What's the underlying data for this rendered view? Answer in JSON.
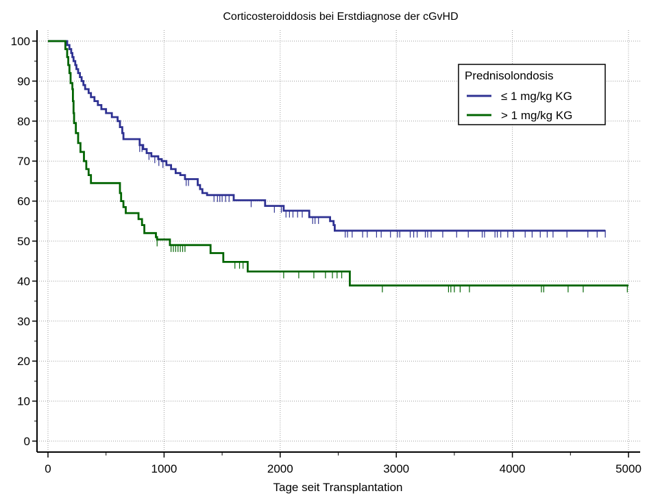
{
  "chart_data": {
    "type": "line",
    "step": true,
    "title": "Corticosteroiddosis bei Erstdiagnose der cGvHD",
    "xlabel": "Tage seit Transplantation",
    "ylabel": "",
    "xlim": [
      0,
      5000
    ],
    "ylim": [
      0,
      100
    ],
    "xticks": [
      0,
      1000,
      2000,
      3000,
      4000,
      5000
    ],
    "yticks": [
      0,
      10,
      20,
      30,
      40,
      50,
      60,
      70,
      80,
      90,
      100
    ],
    "grid": true,
    "legend": {
      "title": "Prednisolondosis",
      "placement": "top-right"
    },
    "series": [
      {
        "name": "≤ 1 mg/kg KG",
        "color": "#2E3192",
        "points": [
          [
            0,
            100
          ],
          [
            155,
            100
          ],
          [
            165,
            99
          ],
          [
            185,
            98
          ],
          [
            200,
            97
          ],
          [
            210,
            96
          ],
          [
            220,
            95
          ],
          [
            235,
            94
          ],
          [
            245,
            93
          ],
          [
            260,
            92
          ],
          [
            275,
            91
          ],
          [
            290,
            90
          ],
          [
            305,
            89
          ],
          [
            320,
            88
          ],
          [
            350,
            87
          ],
          [
            370,
            86
          ],
          [
            400,
            85
          ],
          [
            430,
            84
          ],
          [
            460,
            83
          ],
          [
            500,
            82
          ],
          [
            550,
            81
          ],
          [
            600,
            80
          ],
          [
            620,
            78.5
          ],
          [
            640,
            77
          ],
          [
            650,
            75.5
          ],
          [
            770,
            75.5
          ],
          [
            790,
            74
          ],
          [
            820,
            73
          ],
          [
            850,
            72
          ],
          [
            890,
            71.2
          ],
          [
            950,
            70.5
          ],
          [
            980,
            70
          ],
          [
            1020,
            69
          ],
          [
            1060,
            68
          ],
          [
            1100,
            67
          ],
          [
            1140,
            66.5
          ],
          [
            1180,
            65.5
          ],
          [
            1280,
            65.5
          ],
          [
            1290,
            64
          ],
          [
            1310,
            63
          ],
          [
            1330,
            62
          ],
          [
            1370,
            61.5
          ],
          [
            1590,
            61.5
          ],
          [
            1600,
            60.2
          ],
          [
            1860,
            60.2
          ],
          [
            1870,
            58.8
          ],
          [
            2020,
            58.8
          ],
          [
            2030,
            57.6
          ],
          [
            2240,
            57.6
          ],
          [
            2250,
            56
          ],
          [
            2420,
            56
          ],
          [
            2430,
            55
          ],
          [
            2460,
            54
          ],
          [
            2470,
            52.6
          ],
          [
            4800,
            52.6
          ]
        ],
        "censor_x": [
          790,
          810,
          870,
          920,
          955,
          990,
          1190,
          1210,
          1430,
          1460,
          1480,
          1500,
          1530,
          1560,
          1750,
          1950,
          2010,
          2050,
          2080,
          2110,
          2150,
          2190,
          2280,
          2300,
          2330,
          2560,
          2580,
          2620,
          2710,
          2750,
          2830,
          2870,
          2950,
          3010,
          3030,
          3120,
          3150,
          3180,
          3250,
          3270,
          3300,
          3400,
          3520,
          3620,
          3740,
          3760,
          3850,
          3870,
          3900,
          3960,
          4010,
          4110,
          4170,
          4240,
          4300,
          4350,
          4470,
          4650,
          4730,
          4800
        ]
      },
      {
        "name": "> 1 mg/kg KG",
        "color": "#006400",
        "points": [
          [
            0,
            100
          ],
          [
            140,
            100
          ],
          [
            150,
            98
          ],
          [
            165,
            96
          ],
          [
            175,
            94
          ],
          [
            185,
            92
          ],
          [
            195,
            89.5
          ],
          [
            210,
            88
          ],
          [
            215,
            85
          ],
          [
            220,
            82
          ],
          [
            225,
            79.5
          ],
          [
            240,
            77
          ],
          [
            260,
            74.5
          ],
          [
            280,
            72.3
          ],
          [
            310,
            70
          ],
          [
            330,
            68
          ],
          [
            350,
            66.5
          ],
          [
            370,
            64.5
          ],
          [
            610,
            64.5
          ],
          [
            620,
            62
          ],
          [
            630,
            60
          ],
          [
            650,
            58.5
          ],
          [
            670,
            57
          ],
          [
            760,
            57
          ],
          [
            780,
            55.5
          ],
          [
            810,
            54
          ],
          [
            830,
            52
          ],
          [
            920,
            52
          ],
          [
            930,
            51
          ],
          [
            940,
            50.4
          ],
          [
            1040,
            50.4
          ],
          [
            1050,
            49
          ],
          [
            1390,
            49
          ],
          [
            1400,
            47
          ],
          [
            1500,
            47
          ],
          [
            1510,
            44.8
          ],
          [
            1710,
            44.8
          ],
          [
            1720,
            42.4
          ],
          [
            2590,
            42.4
          ],
          [
            2600,
            38.9
          ],
          [
            5000,
            38.9
          ]
        ],
        "censor_x": [
          940,
          1060,
          1080,
          1100,
          1120,
          1140,
          1160,
          1180,
          1610,
          1650,
          1680,
          2030,
          2160,
          2290,
          2390,
          2450,
          2490,
          2530,
          2880,
          3450,
          3470,
          3500,
          3550,
          3630,
          4250,
          4270,
          4480,
          4610,
          4990
        ]
      }
    ]
  }
}
